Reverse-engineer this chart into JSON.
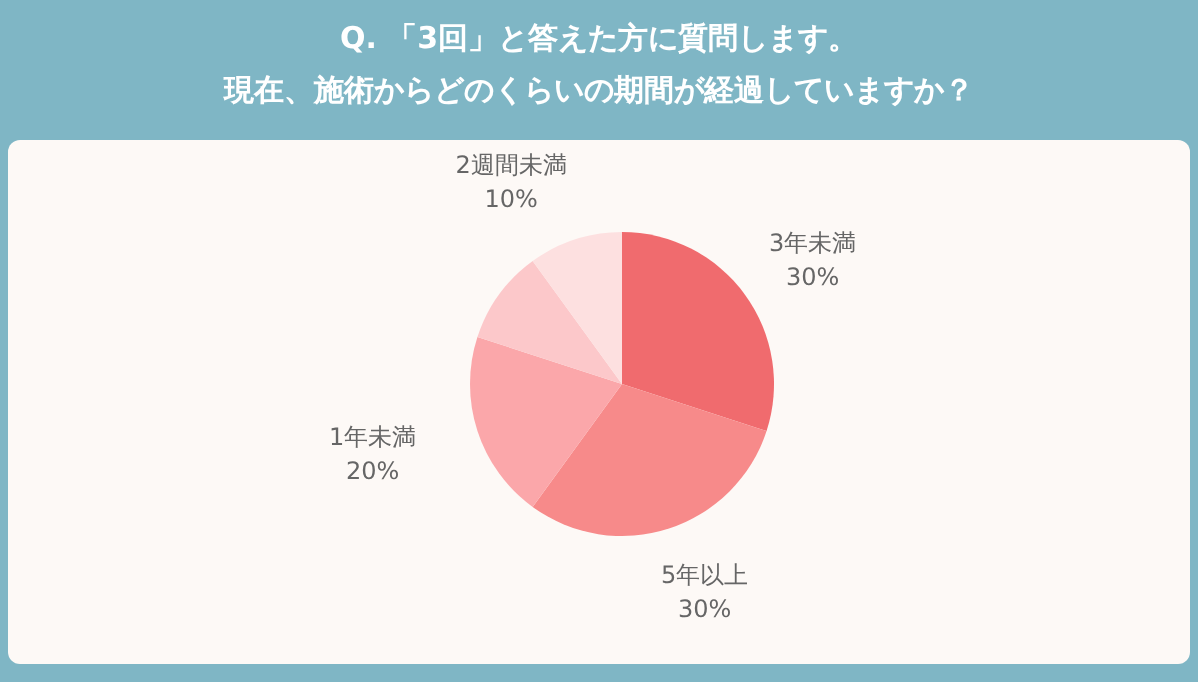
{
  "chart_data": {
    "type": "pie",
    "title": "Q. 「3回」と答えた方に質問します。",
    "subtitle": "現在、施術からどのくらいの期間が経過していますか？",
    "categories": [
      "3年未満",
      "5年以上",
      "1年未満",
      null,
      "2週間未満"
    ],
    "values": [
      30,
      30,
      20,
      10,
      10
    ],
    "value_labels": [
      "30%",
      "30%",
      "20%",
      null,
      "10%"
    ],
    "colors": [
      "#f06b6e",
      "#f78a8a",
      "#fba7aa",
      "#fcc8ca",
      "#fde0e0"
    ],
    "legend": false
  }
}
